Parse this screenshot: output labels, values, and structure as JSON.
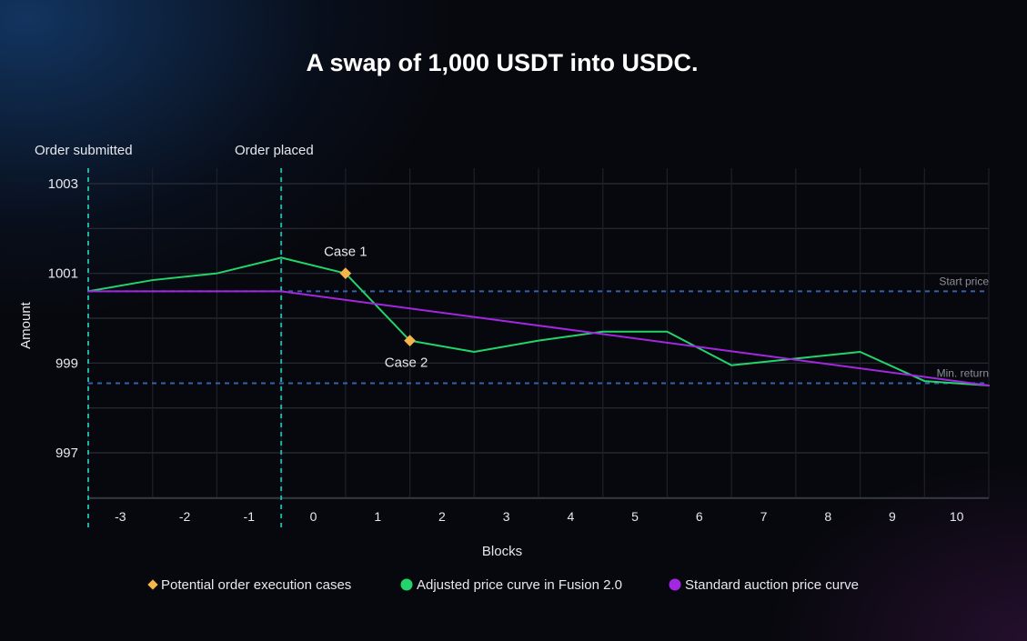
{
  "chart_data": {
    "type": "line",
    "title": "A swap of 1,000 USDT into USDC.",
    "xlabel": "Blocks",
    "ylabel": "Amount",
    "x_ticks": [
      "-3",
      "-2",
      "-1",
      "0",
      "1",
      "2",
      "3",
      "4",
      "5",
      "6",
      "7",
      "8",
      "9",
      "10"
    ],
    "y_ticks": [
      "1003",
      "1001",
      "999",
      "997"
    ],
    "xlim": [
      -3.5,
      10.5
    ],
    "ylim": [
      996,
      1003
    ],
    "grid": true,
    "series": [
      {
        "name": "Adjusted price curve in Fusion 2.0",
        "color": "#22d46b",
        "x": [
          -3.5,
          -2.5,
          -1.5,
          -0.5,
          0.5,
          1.5,
          2.5,
          3.5,
          4.5,
          5.5,
          6.5,
          7.5,
          8.5,
          9.5,
          10.5
        ],
        "values": [
          1000.6,
          1000.85,
          1001.0,
          1001.35,
          1001.0,
          999.5,
          999.25,
          999.5,
          999.7,
          999.7,
          998.95,
          999.1,
          999.25,
          998.6,
          998.5
        ]
      },
      {
        "name": "Standard auction price curve",
        "color": "#a326e0",
        "x": [
          -3.5,
          -0.5,
          10.5
        ],
        "values": [
          1000.6,
          1000.6,
          998.5
        ]
      }
    ],
    "execution_cases": {
      "name": "Potential order execution cases",
      "color": "#f5b54a",
      "points": [
        {
          "label": "Case 1",
          "x": 0.5,
          "y": 1001.0
        },
        {
          "label": "Case 2",
          "x": 1.5,
          "y": 999.5
        }
      ]
    },
    "reference_lines": [
      {
        "label": "Start price",
        "value": 1000.6
      },
      {
        "label": "Min. return",
        "value": 998.55
      }
    ],
    "vertical_markers": [
      {
        "label": "Order submitted",
        "x": -3.5
      },
      {
        "label": "Order placed",
        "x": -0.5
      }
    ],
    "legend": {
      "position": "bottom",
      "entries": [
        {
          "label": "Potential order execution cases",
          "shape": "diamond",
          "color": "#f5b54a"
        },
        {
          "label": "Adjusted price curve in Fusion 2.0",
          "shape": "circle",
          "color": "#22d46b"
        },
        {
          "label": "Standard auction price curve",
          "shape": "circle",
          "color": "#a326e0"
        }
      ]
    }
  }
}
